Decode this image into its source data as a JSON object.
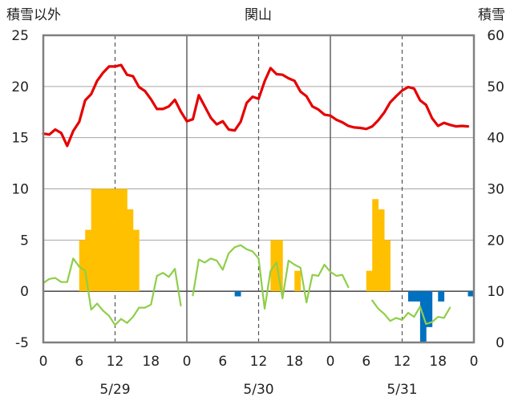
{
  "chart_data": {
    "type": "line",
    "title": "関山",
    "y_left_label": "積雪以外",
    "y_right_label": "積雪",
    "y_left": {
      "min": -5,
      "max": 25,
      "ticks": [
        -5,
        0,
        5,
        10,
        15,
        20,
        25
      ]
    },
    "y_right": {
      "min": 0,
      "max": 60,
      "ticks": [
        0,
        10,
        20,
        30,
        40,
        50,
        60
      ]
    },
    "x_hour_ticks": [
      "0",
      "6",
      "12",
      "18",
      "0",
      "6",
      "12",
      "18",
      "0",
      "6",
      "12",
      "18",
      "0"
    ],
    "dates": [
      "5/29",
      "5/30",
      "5/31"
    ],
    "grid": {
      "vertical_dashed_at_noon": true,
      "vertical_solid_at_midnight": true,
      "horizontal": true
    },
    "colors": {
      "temperature": "#e60000",
      "snow_depth": "#8fce4a",
      "precipitation": "#ffc000",
      "snow_change": "#0070c0"
    },
    "series": [
      {
        "axis": "right",
        "kind": "line",
        "color_key": "temperature",
        "points": [
          [
            0,
            40.8
          ],
          [
            1,
            40.6
          ],
          [
            2,
            41.6
          ],
          [
            3,
            40.9
          ],
          [
            4,
            38.4
          ],
          [
            5,
            41.3
          ],
          [
            6,
            43.1
          ],
          [
            7,
            47.3
          ],
          [
            8,
            48.5
          ],
          [
            9,
            51.1
          ],
          [
            10,
            52.7
          ],
          [
            11,
            53.9
          ],
          [
            12,
            53.9
          ],
          [
            13,
            54.2
          ],
          [
            14,
            52.3
          ],
          [
            15,
            52.0
          ],
          [
            16,
            49.9
          ],
          [
            17,
            49.1
          ],
          [
            18,
            47.5
          ],
          [
            19,
            45.6
          ],
          [
            20,
            45.6
          ],
          [
            21,
            46.1
          ],
          [
            22,
            47.4
          ],
          [
            23,
            45.1
          ],
          [
            24,
            43.2
          ],
          [
            25,
            43.6
          ],
          [
            26,
            48.3
          ],
          [
            27,
            46.1
          ],
          [
            28,
            43.9
          ],
          [
            29,
            42.6
          ],
          [
            30,
            43.2
          ],
          [
            31,
            41.6
          ],
          [
            32,
            41.4
          ],
          [
            33,
            43.1
          ],
          [
            34,
            46.8
          ],
          [
            35,
            48.0
          ],
          [
            36,
            47.6
          ],
          [
            37,
            51.0
          ],
          [
            38,
            53.6
          ],
          [
            39,
            52.4
          ],
          [
            40,
            52.3
          ],
          [
            41,
            51.6
          ],
          [
            42,
            51.1
          ],
          [
            43,
            49.0
          ],
          [
            44,
            48.1
          ],
          [
            45,
            46.1
          ],
          [
            46,
            45.5
          ],
          [
            47,
            44.5
          ],
          [
            48,
            44.3
          ],
          [
            49,
            43.5
          ],
          [
            50,
            43.0
          ],
          [
            51,
            42.3
          ],
          [
            52,
            42.0
          ],
          [
            53,
            41.9
          ],
          [
            54,
            41.7
          ],
          [
            55,
            42.2
          ],
          [
            56,
            43.4
          ],
          [
            57,
            44.9
          ],
          [
            58,
            46.9
          ],
          [
            59,
            48.1
          ],
          [
            60,
            49.2
          ],
          [
            61,
            49.9
          ],
          [
            62,
            49.6
          ],
          [
            63,
            47.3
          ],
          [
            64,
            46.4
          ],
          [
            65,
            43.8
          ],
          [
            66,
            42.3
          ],
          [
            67,
            42.9
          ],
          [
            68,
            42.5
          ],
          [
            69,
            42.2
          ],
          [
            70,
            42.3
          ],
          [
            71,
            42.2
          ]
        ]
      },
      {
        "axis": "left",
        "kind": "line",
        "color_key": "snow_depth",
        "segments": [
          [
            [
              0,
              0.8
            ],
            [
              1,
              1.2
            ],
            [
              2,
              1.3
            ],
            [
              3,
              0.9
            ],
            [
              4,
              0.9
            ],
            [
              5,
              3.2
            ],
            [
              6,
              2.4
            ],
            [
              7,
              2.0
            ],
            [
              8,
              -1.8
            ],
            [
              9,
              -1.2
            ],
            [
              10,
              -1.9
            ],
            [
              11,
              -2.4
            ],
            [
              12,
              -3.3
            ],
            [
              13,
              -2.7
            ],
            [
              14,
              -3.1
            ],
            [
              15,
              -2.5
            ],
            [
              16,
              -1.6
            ],
            [
              17,
              -1.6
            ],
            [
              18,
              -1.3
            ],
            [
              19,
              1.5
            ],
            [
              20,
              1.8
            ],
            [
              21,
              1.4
            ],
            [
              22,
              2.2
            ],
            [
              23,
              -1.4
            ]
          ],
          [
            [
              25,
              -0.4
            ],
            [
              26,
              3.1
            ],
            [
              27,
              2.8
            ],
            [
              28,
              3.2
            ],
            [
              29,
              3.0
            ],
            [
              30,
              2.1
            ],
            [
              31,
              3.7
            ],
            [
              32,
              4.3
            ],
            [
              33,
              4.5
            ],
            [
              34,
              4.1
            ],
            [
              35,
              3.9
            ],
            [
              36,
              3.2
            ],
            [
              37,
              -1.7
            ],
            [
              38,
              2.0
            ],
            [
              39,
              2.8
            ],
            [
              40,
              -0.7
            ],
            [
              41,
              3.0
            ],
            [
              42,
              2.6
            ],
            [
              43,
              2.3
            ],
            [
              44,
              -1.1
            ],
            [
              45,
              1.6
            ],
            [
              46,
              1.5
            ],
            [
              47,
              2.6
            ],
            [
              48,
              1.9
            ],
            [
              49,
              1.5
            ],
            [
              50,
              1.6
            ],
            [
              51,
              0.4
            ]
          ],
          [
            [
              55,
              -0.9
            ],
            [
              56,
              -1.7
            ],
            [
              57,
              -2.2
            ],
            [
              58,
              -2.9
            ],
            [
              59,
              -2.6
            ],
            [
              60,
              -2.8
            ],
            [
              61,
              -2.1
            ],
            [
              62,
              -2.5
            ],
            [
              63,
              -1.5
            ],
            [
              64,
              -3.2
            ],
            [
              65,
              -3.0
            ],
            [
              66,
              -2.5
            ],
            [
              67,
              -2.6
            ],
            [
              68,
              -1.6
            ]
          ]
        ]
      },
      {
        "axis": "left",
        "kind": "bar",
        "color_key": "precipitation",
        "bars": [
          [
            6,
            5
          ],
          [
            7,
            6
          ],
          [
            8,
            10
          ],
          [
            9,
            10
          ],
          [
            10,
            10
          ],
          [
            11,
            10
          ],
          [
            12,
            10
          ],
          [
            13,
            10
          ],
          [
            14,
            8
          ],
          [
            15,
            6
          ],
          [
            38,
            5
          ],
          [
            39,
            5
          ],
          [
            42,
            2
          ],
          [
            54,
            2
          ],
          [
            55,
            9
          ],
          [
            56,
            8
          ],
          [
            57,
            5
          ]
        ]
      },
      {
        "axis": "left",
        "kind": "bar",
        "color_key": "snow_change",
        "bars": [
          [
            32,
            -0.5
          ],
          [
            61,
            -1
          ],
          [
            62,
            -1
          ],
          [
            63,
            -5
          ],
          [
            64,
            -3.5
          ],
          [
            66,
            -1
          ],
          [
            71,
            -0.5
          ]
        ]
      }
    ]
  }
}
